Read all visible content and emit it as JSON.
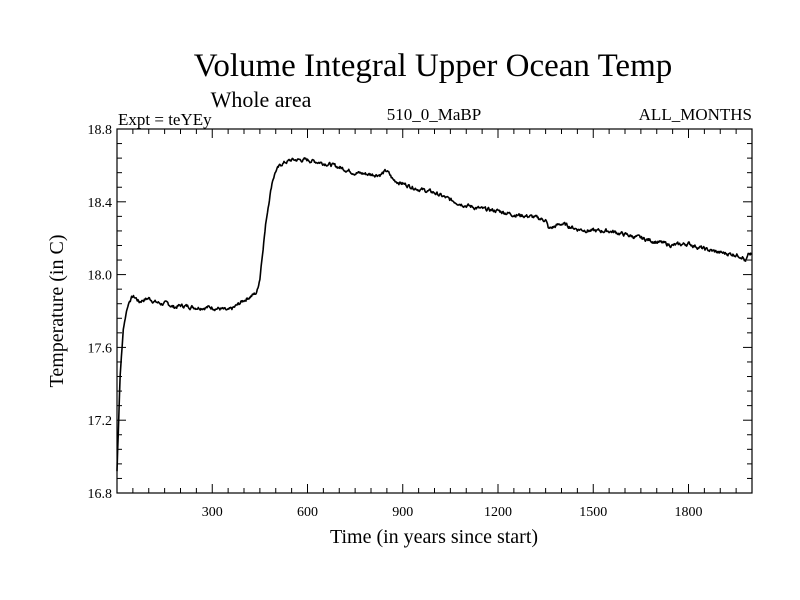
{
  "chart_data": {
    "type": "line",
    "title": "Volume Integral Upper Ocean Temp",
    "subtitle": "Whole area",
    "expt_label": "Expt = teYEy",
    "run_label": "510_0_MaBP",
    "months_label": "ALL_MONTHS",
    "xlabel": "Time (in years since start)",
    "ylabel": "Temperature (in C)",
    "xlim": [
      0,
      2000
    ],
    "ylim": [
      16.8,
      18.8
    ],
    "xticks": [
      300,
      600,
      900,
      1200,
      1500,
      1800
    ],
    "xtick_labels": [
      "300",
      "600",
      "900",
      "1200",
      "1500",
      "1800"
    ],
    "yticks": [
      16.8,
      17.2,
      17.6,
      18.0,
      18.4,
      18.8
    ],
    "ytick_labels": [
      "16.8",
      "17.2",
      "17.6",
      "18.0",
      "18.4",
      "18.8"
    ],
    "grid": false,
    "series": [
      {
        "name": "Volume integral upper ocean temperature",
        "x": [
          0,
          10,
          20,
          30,
          40,
          50,
          60,
          70,
          80,
          100,
          120,
          140,
          160,
          180,
          200,
          250,
          300,
          330,
          350,
          370,
          400,
          420,
          440,
          450,
          460,
          470,
          480,
          490,
          500,
          520,
          550,
          580,
          600,
          630,
          660,
          700,
          750,
          800,
          830,
          850,
          870,
          900,
          950,
          1000,
          1050,
          1100,
          1150,
          1200,
          1250,
          1300,
          1350,
          1360,
          1400,
          1450,
          1500,
          1550,
          1600,
          1650,
          1700,
          1750,
          1800,
          1850,
          1900,
          1950,
          1970,
          1980,
          1990,
          2000
        ],
        "y": [
          16.92,
          17.45,
          17.7,
          17.8,
          17.86,
          17.88,
          17.87,
          17.85,
          17.86,
          17.87,
          17.85,
          17.84,
          17.84,
          17.82,
          17.83,
          17.82,
          17.82,
          17.81,
          17.8,
          17.82,
          17.86,
          17.88,
          17.9,
          17.98,
          18.15,
          18.3,
          18.42,
          18.52,
          18.57,
          18.61,
          18.63,
          18.63,
          18.63,
          18.62,
          18.61,
          18.59,
          18.56,
          18.55,
          18.55,
          18.57,
          18.52,
          18.5,
          18.47,
          18.45,
          18.41,
          18.38,
          18.36,
          18.35,
          18.33,
          18.32,
          18.3,
          18.25,
          18.28,
          18.25,
          18.24,
          18.24,
          18.22,
          18.2,
          18.18,
          18.16,
          18.17,
          18.14,
          18.12,
          18.11,
          18.1,
          18.07,
          18.11,
          18.11
        ]
      }
    ]
  }
}
